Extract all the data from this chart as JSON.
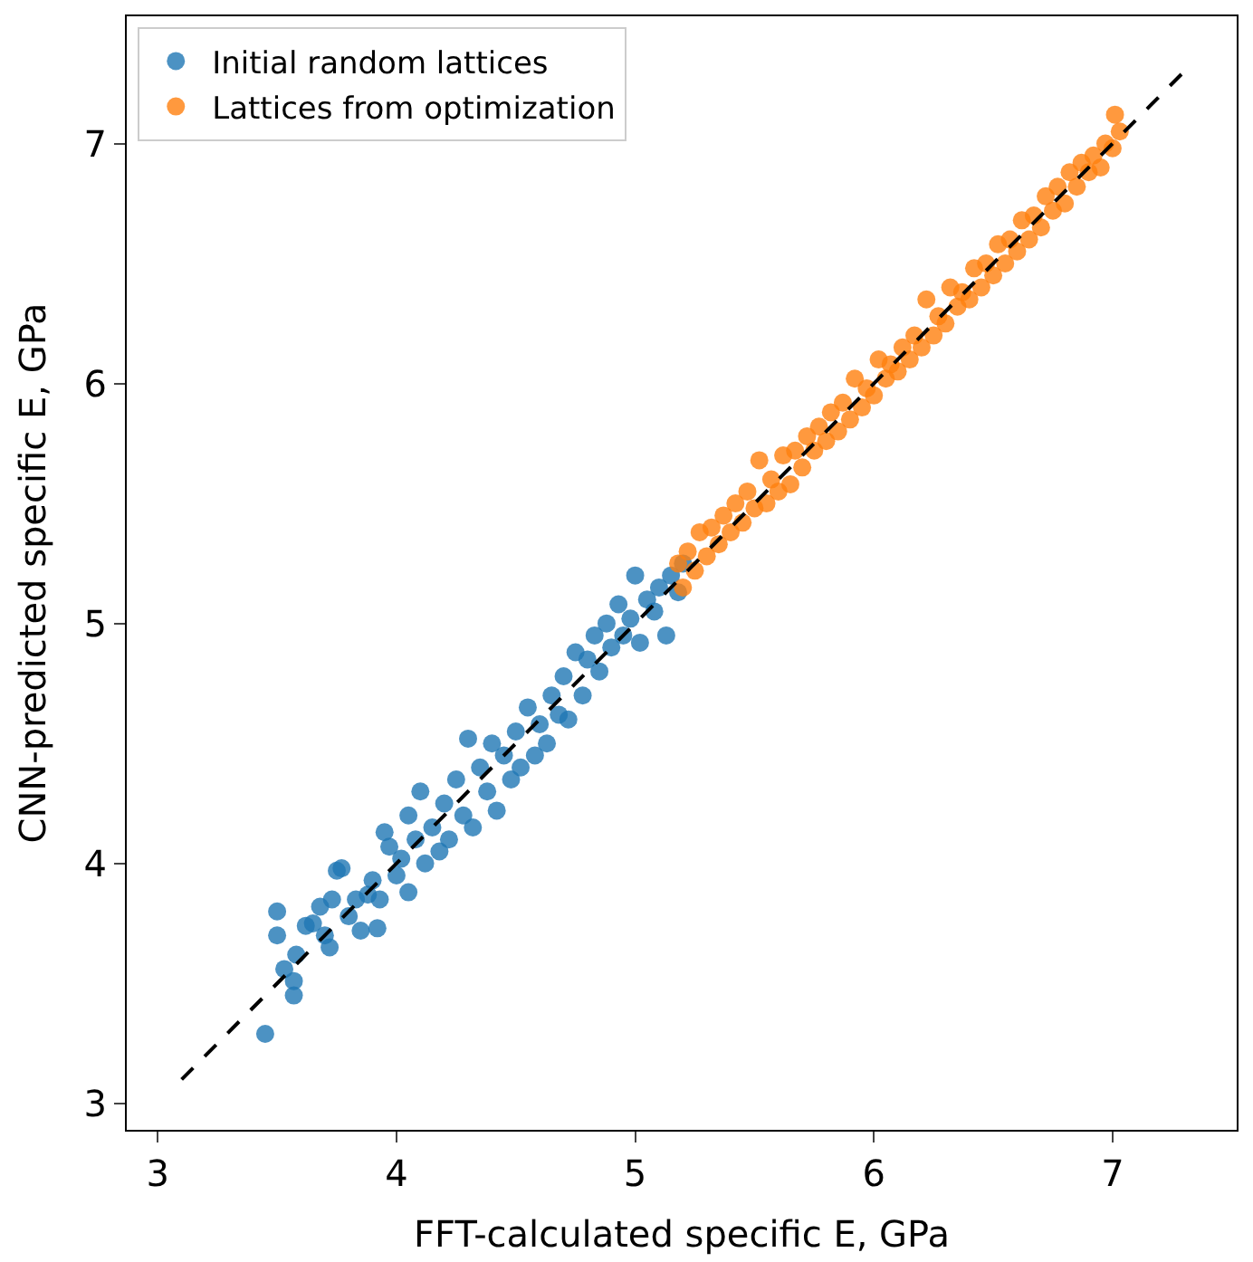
{
  "chart_data": {
    "type": "scatter",
    "xlabel": "FFT-calculated specific E, GPa",
    "ylabel": "CNN-predicted specific E, GPa",
    "xlim": [
      2.87,
      7.52
    ],
    "ylim": [
      2.89,
      7.53
    ],
    "xticks": [
      3,
      4,
      5,
      6,
      7
    ],
    "yticks": [
      3,
      4,
      5,
      6,
      7
    ],
    "legend": "top left",
    "marker": "circle",
    "series": [
      {
        "name": "Initial random lattices",
        "color": "#1f77b4",
        "x": [
          3.45,
          3.5,
          3.5,
          3.53,
          3.57,
          3.57,
          3.58,
          3.62,
          3.65,
          3.68,
          3.7,
          3.72,
          3.73,
          3.75,
          3.77,
          3.8,
          3.83,
          3.85,
          3.88,
          3.9,
          3.92,
          3.93,
          3.95,
          3.97,
          4.0,
          4.02,
          4.05,
          4.05,
          4.08,
          4.1,
          4.12,
          4.15,
          4.18,
          4.2,
          4.22,
          4.25,
          4.28,
          4.3,
          4.32,
          4.35,
          4.38,
          4.4,
          4.42,
          4.45,
          4.48,
          4.5,
          4.52,
          4.55,
          4.58,
          4.6,
          4.63,
          4.65,
          4.68,
          4.7,
          4.72,
          4.75,
          4.78,
          4.8,
          4.83,
          4.85,
          4.88,
          4.9,
          4.93,
          4.95,
          4.98,
          5.0,
          5.02,
          5.05,
          5.08,
          5.1,
          5.13,
          5.15,
          5.18,
          5.2
        ],
        "values": [
          3.29,
          3.8,
          3.7,
          3.56,
          3.45,
          3.51,
          3.62,
          3.74,
          3.75,
          3.82,
          3.7,
          3.65,
          3.85,
          3.97,
          3.98,
          3.78,
          3.85,
          3.72,
          3.87,
          3.93,
          3.73,
          3.85,
          4.13,
          4.07,
          3.95,
          4.02,
          3.88,
          4.2,
          4.1,
          4.3,
          4.0,
          4.15,
          4.05,
          4.25,
          4.1,
          4.35,
          4.2,
          4.52,
          4.15,
          4.4,
          4.3,
          4.5,
          4.22,
          4.45,
          4.35,
          4.55,
          4.4,
          4.65,
          4.45,
          4.58,
          4.5,
          4.7,
          4.62,
          4.78,
          4.6,
          4.88,
          4.7,
          4.85,
          4.95,
          4.8,
          5.0,
          4.9,
          5.08,
          4.95,
          5.02,
          5.2,
          4.92,
          5.1,
          5.05,
          5.15,
          4.95,
          5.2,
          5.13,
          5.25
        ]
      },
      {
        "name": "Lattices from optimization",
        "color": "#ff7f0e",
        "x": [
          5.18,
          5.2,
          5.22,
          5.25,
          5.27,
          5.3,
          5.32,
          5.35,
          5.37,
          5.4,
          5.42,
          5.45,
          5.47,
          5.5,
          5.52,
          5.55,
          5.57,
          5.6,
          5.62,
          5.65,
          5.67,
          5.7,
          5.72,
          5.75,
          5.77,
          5.8,
          5.82,
          5.85,
          5.87,
          5.9,
          5.92,
          5.95,
          5.97,
          6.0,
          6.02,
          6.05,
          6.07,
          6.1,
          6.12,
          6.15,
          6.17,
          6.2,
          6.22,
          6.25,
          6.27,
          6.3,
          6.32,
          6.35,
          6.37,
          6.4,
          6.42,
          6.45,
          6.47,
          6.5,
          6.52,
          6.55,
          6.57,
          6.6,
          6.62,
          6.65,
          6.67,
          6.7,
          6.72,
          6.75,
          6.77,
          6.8,
          6.82,
          6.85,
          6.87,
          6.9,
          6.92,
          6.95,
          6.97,
          7.0,
          7.01,
          7.03
        ],
        "values": [
          5.25,
          5.15,
          5.3,
          5.22,
          5.38,
          5.28,
          5.4,
          5.33,
          5.45,
          5.38,
          5.5,
          5.42,
          5.55,
          5.48,
          5.68,
          5.5,
          5.6,
          5.55,
          5.7,
          5.58,
          5.72,
          5.65,
          5.78,
          5.72,
          5.82,
          5.76,
          5.88,
          5.8,
          5.92,
          5.85,
          6.02,
          5.9,
          5.98,
          5.95,
          6.1,
          6.02,
          6.08,
          6.05,
          6.15,
          6.1,
          6.2,
          6.15,
          6.35,
          6.2,
          6.28,
          6.25,
          6.4,
          6.32,
          6.38,
          6.35,
          6.48,
          6.4,
          6.5,
          6.45,
          6.58,
          6.5,
          6.6,
          6.55,
          6.68,
          6.6,
          6.7,
          6.65,
          6.78,
          6.72,
          6.82,
          6.75,
          6.88,
          6.82,
          6.92,
          6.88,
          6.95,
          6.9,
          7.0,
          6.98,
          7.12,
          7.05
        ]
      },
      {
        "type": "line",
        "color": "#000000",
        "line_style": "dashed",
        "marker": "none",
        "x": [
          3.1,
          7.3
        ],
        "values": [
          3.1,
          7.3
        ]
      }
    ]
  }
}
